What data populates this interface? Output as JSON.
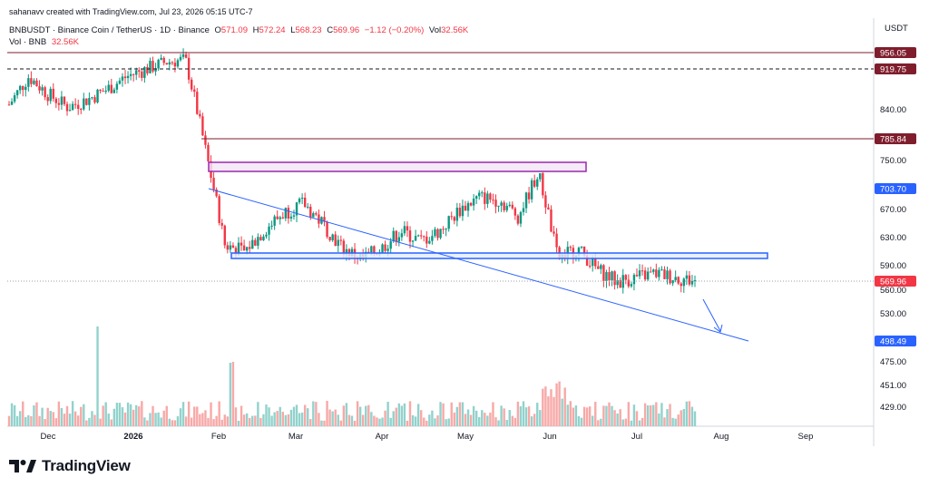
{
  "credit": "sahanavv created with TradingView.com, Jul 23, 2026 05:15 UTC-7",
  "legend": {
    "symbol": "BNBUSDT · Binance Coin / TetherUS · 1D · Binance",
    "o_label": "O",
    "o_value": "571.09",
    "h_label": "H",
    "h_value": "572.24",
    "l_label": "L",
    "l_value": "568.23",
    "c_label": "C",
    "c_value": "569.96",
    "change": "−1.12 (−0.20%)",
    "vol_label": "Vol",
    "vol_value": "32.56K",
    "vol2_label": "Vol · BNB",
    "vol2_value": "32.56K"
  },
  "brand": {
    "name": "TradingView",
    "logo_icon": "tradingview-logo-icon"
  },
  "colors": {
    "up": "#089981",
    "down": "#f23645",
    "up_vol": "#92d2cc",
    "down_vol": "#f7a9a7",
    "trendline": "#2962ff",
    "purple_zone": "#9c27b0",
    "maroon_level": "#7f1d2d",
    "blue_level": "#2962ff"
  },
  "chart_data": {
    "type": "candlestick",
    "title": "BNBUSDT · Binance Coin / TetherUS · 1D · Binance",
    "y_unit": "USDT",
    "y_ticks": [
      "840.00",
      "750.00",
      "670.00",
      "630.00",
      "590.00",
      "560.00",
      "530.00",
      "475.00",
      "451.00",
      "429.00"
    ],
    "x_ticks": [
      "Dec",
      "2026",
      "Feb",
      "Mar",
      "Apr",
      "May",
      "Jun",
      "Jul",
      "Aug",
      "Sep"
    ],
    "price_labels": [
      {
        "text": "956.05",
        "kind": "level-maroon",
        "value": 956.05
      },
      {
        "text": "919.75",
        "kind": "level-maroon",
        "value": 919.75
      },
      {
        "text": "785.84",
        "kind": "level-maroon",
        "value": 785.84
      },
      {
        "text": "703.70",
        "kind": "level-blue",
        "value": 703.7
      },
      {
        "text": "569.96",
        "kind": "last-price",
        "value": 569.96
      },
      {
        "text": "498.49",
        "kind": "level-blue",
        "value": 498.49
      }
    ],
    "annotations": {
      "resistance_zone": {
        "type": "rectangle",
        "color": "purple",
        "from": "2026-02-01",
        "to": "2026-06-15",
        "high": 745,
        "low": 729
      },
      "support_zone": {
        "type": "rectangle",
        "color": "blue",
        "from": "2026-02-04",
        "to": "2026-08-20",
        "high": 606,
        "low": 599
      },
      "descending_trendline": {
        "from_date": "2026-01-20",
        "from_price": 712,
        "to_date": "2026-08-10",
        "to_price": 498.49
      },
      "projection_arrow": {
        "from_date": "2026-07-28",
        "from_price": 545,
        "to_date": "2026-08-02",
        "to_price": 505
      },
      "dashed_level": 919.75,
      "solid_level_top": 956.05,
      "solid_level_mid": 785.84
    },
    "series": [
      {
        "name": "BNBUSDT",
        "type": "candles",
        "x": [
          "2025-11-22",
          "2025-11-29",
          "2025-12-06",
          "2025-12-13",
          "2025-12-20",
          "2025-12-27",
          "2026-01-03",
          "2026-01-10",
          "2026-01-17",
          "2026-01-24",
          "2026-01-31",
          "2026-02-07",
          "2026-02-14",
          "2026-02-21",
          "2026-02-28",
          "2026-03-07",
          "2026-03-14",
          "2026-03-21",
          "2026-03-28",
          "2026-04-04",
          "2026-04-11",
          "2026-04-18",
          "2026-04-25",
          "2026-05-02",
          "2026-05-09",
          "2026-05-16",
          "2026-05-23",
          "2026-05-30",
          "2026-06-06",
          "2026-06-13",
          "2026-06-20",
          "2026-06-27",
          "2026-07-04",
          "2026-07-11",
          "2026-07-18",
          "2026-07-23"
        ],
        "close": [
          850,
          905,
          870,
          845,
          860,
          880,
          905,
          920,
          935,
          940,
          770,
          620,
          610,
          640,
          665,
          680,
          650,
          615,
          600,
          615,
          640,
          625,
          640,
          670,
          690,
          685,
          660,
          730,
          600,
          615,
          585,
          570,
          575,
          580,
          575,
          569.96
        ]
      },
      {
        "name": "Vol · BNB",
        "type": "volume-bars",
        "x": [
          "2025-11-22",
          "2025-12-27",
          "2026-02-07",
          "2026-05-30",
          "2026-06-06",
          "2026-07-23"
        ],
        "values": [
          "moderate",
          "high",
          "high",
          "high",
          "high",
          "32.56K"
        ]
      }
    ]
  }
}
